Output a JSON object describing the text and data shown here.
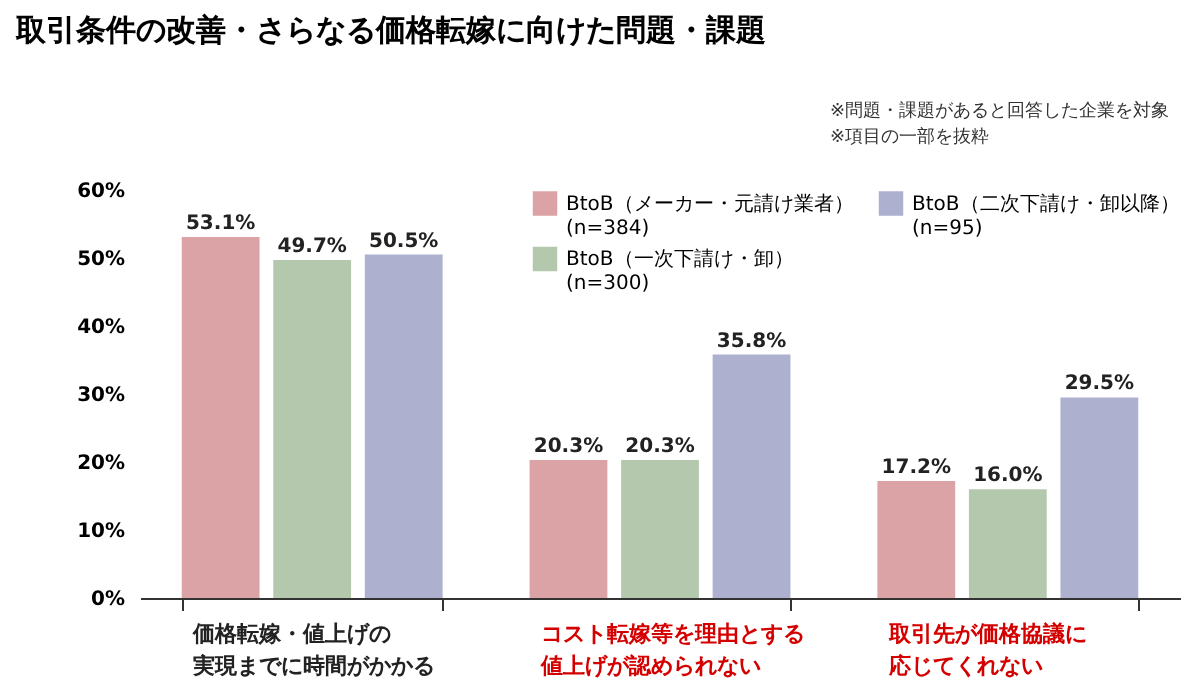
{
  "chart_data": {
    "type": "bar",
    "title": "取引条件の改善・さらなる価格転嫁に向けた問題・課題",
    "annotations": [
      "※問題・課題があると回答した企業を対象",
      "※項目の一部を抜粋"
    ],
    "categories": [
      "価格転嫁・値上げの実現までに時間がかかる",
      "コスト転嫁等を理由とする値上げが認められない",
      "取引先が価格協議に応じてくれない"
    ],
    "series": [
      {
        "name": "BtoB（メーカー・元請け業者）\n(n=384)",
        "color": "#dba3a6",
        "values": [
          53.1,
          20.3,
          17.2
        ],
        "value_labels": [
          "53.1%",
          "20.3%",
          "17.2%"
        ]
      },
      {
        "name": "BtoB（一次下請け・卸）\n(n=300)",
        "color": "#b3c8ad",
        "values": [
          49.7,
          20.3,
          16.0
        ],
        "value_labels": [
          "49.7%",
          "20.3%",
          "16.0%"
        ]
      },
      {
        "name": "BtoB（二次下請け・卸以降）\n(n=95)",
        "color": "#aeb0d0",
        "values": [
          50.5,
          35.8,
          29.5
        ],
        "value_labels": [
          "50.5%",
          "35.8%",
          "29.5%"
        ]
      }
    ],
    "ylim": [
      0,
      60
    ],
    "yticks": [
      {
        "value": 0,
        "label": "0%"
      },
      {
        "value": 10,
        "label": "10%"
      },
      {
        "value": 20,
        "label": "20%"
      },
      {
        "value": 30,
        "label": "30%"
      },
      {
        "value": 40,
        "label": "40%"
      },
      {
        "value": 50,
        "label": "50%"
      },
      {
        "value": 60,
        "label": "60%"
      }
    ],
    "grid": false,
    "legend": "top right"
  }
}
